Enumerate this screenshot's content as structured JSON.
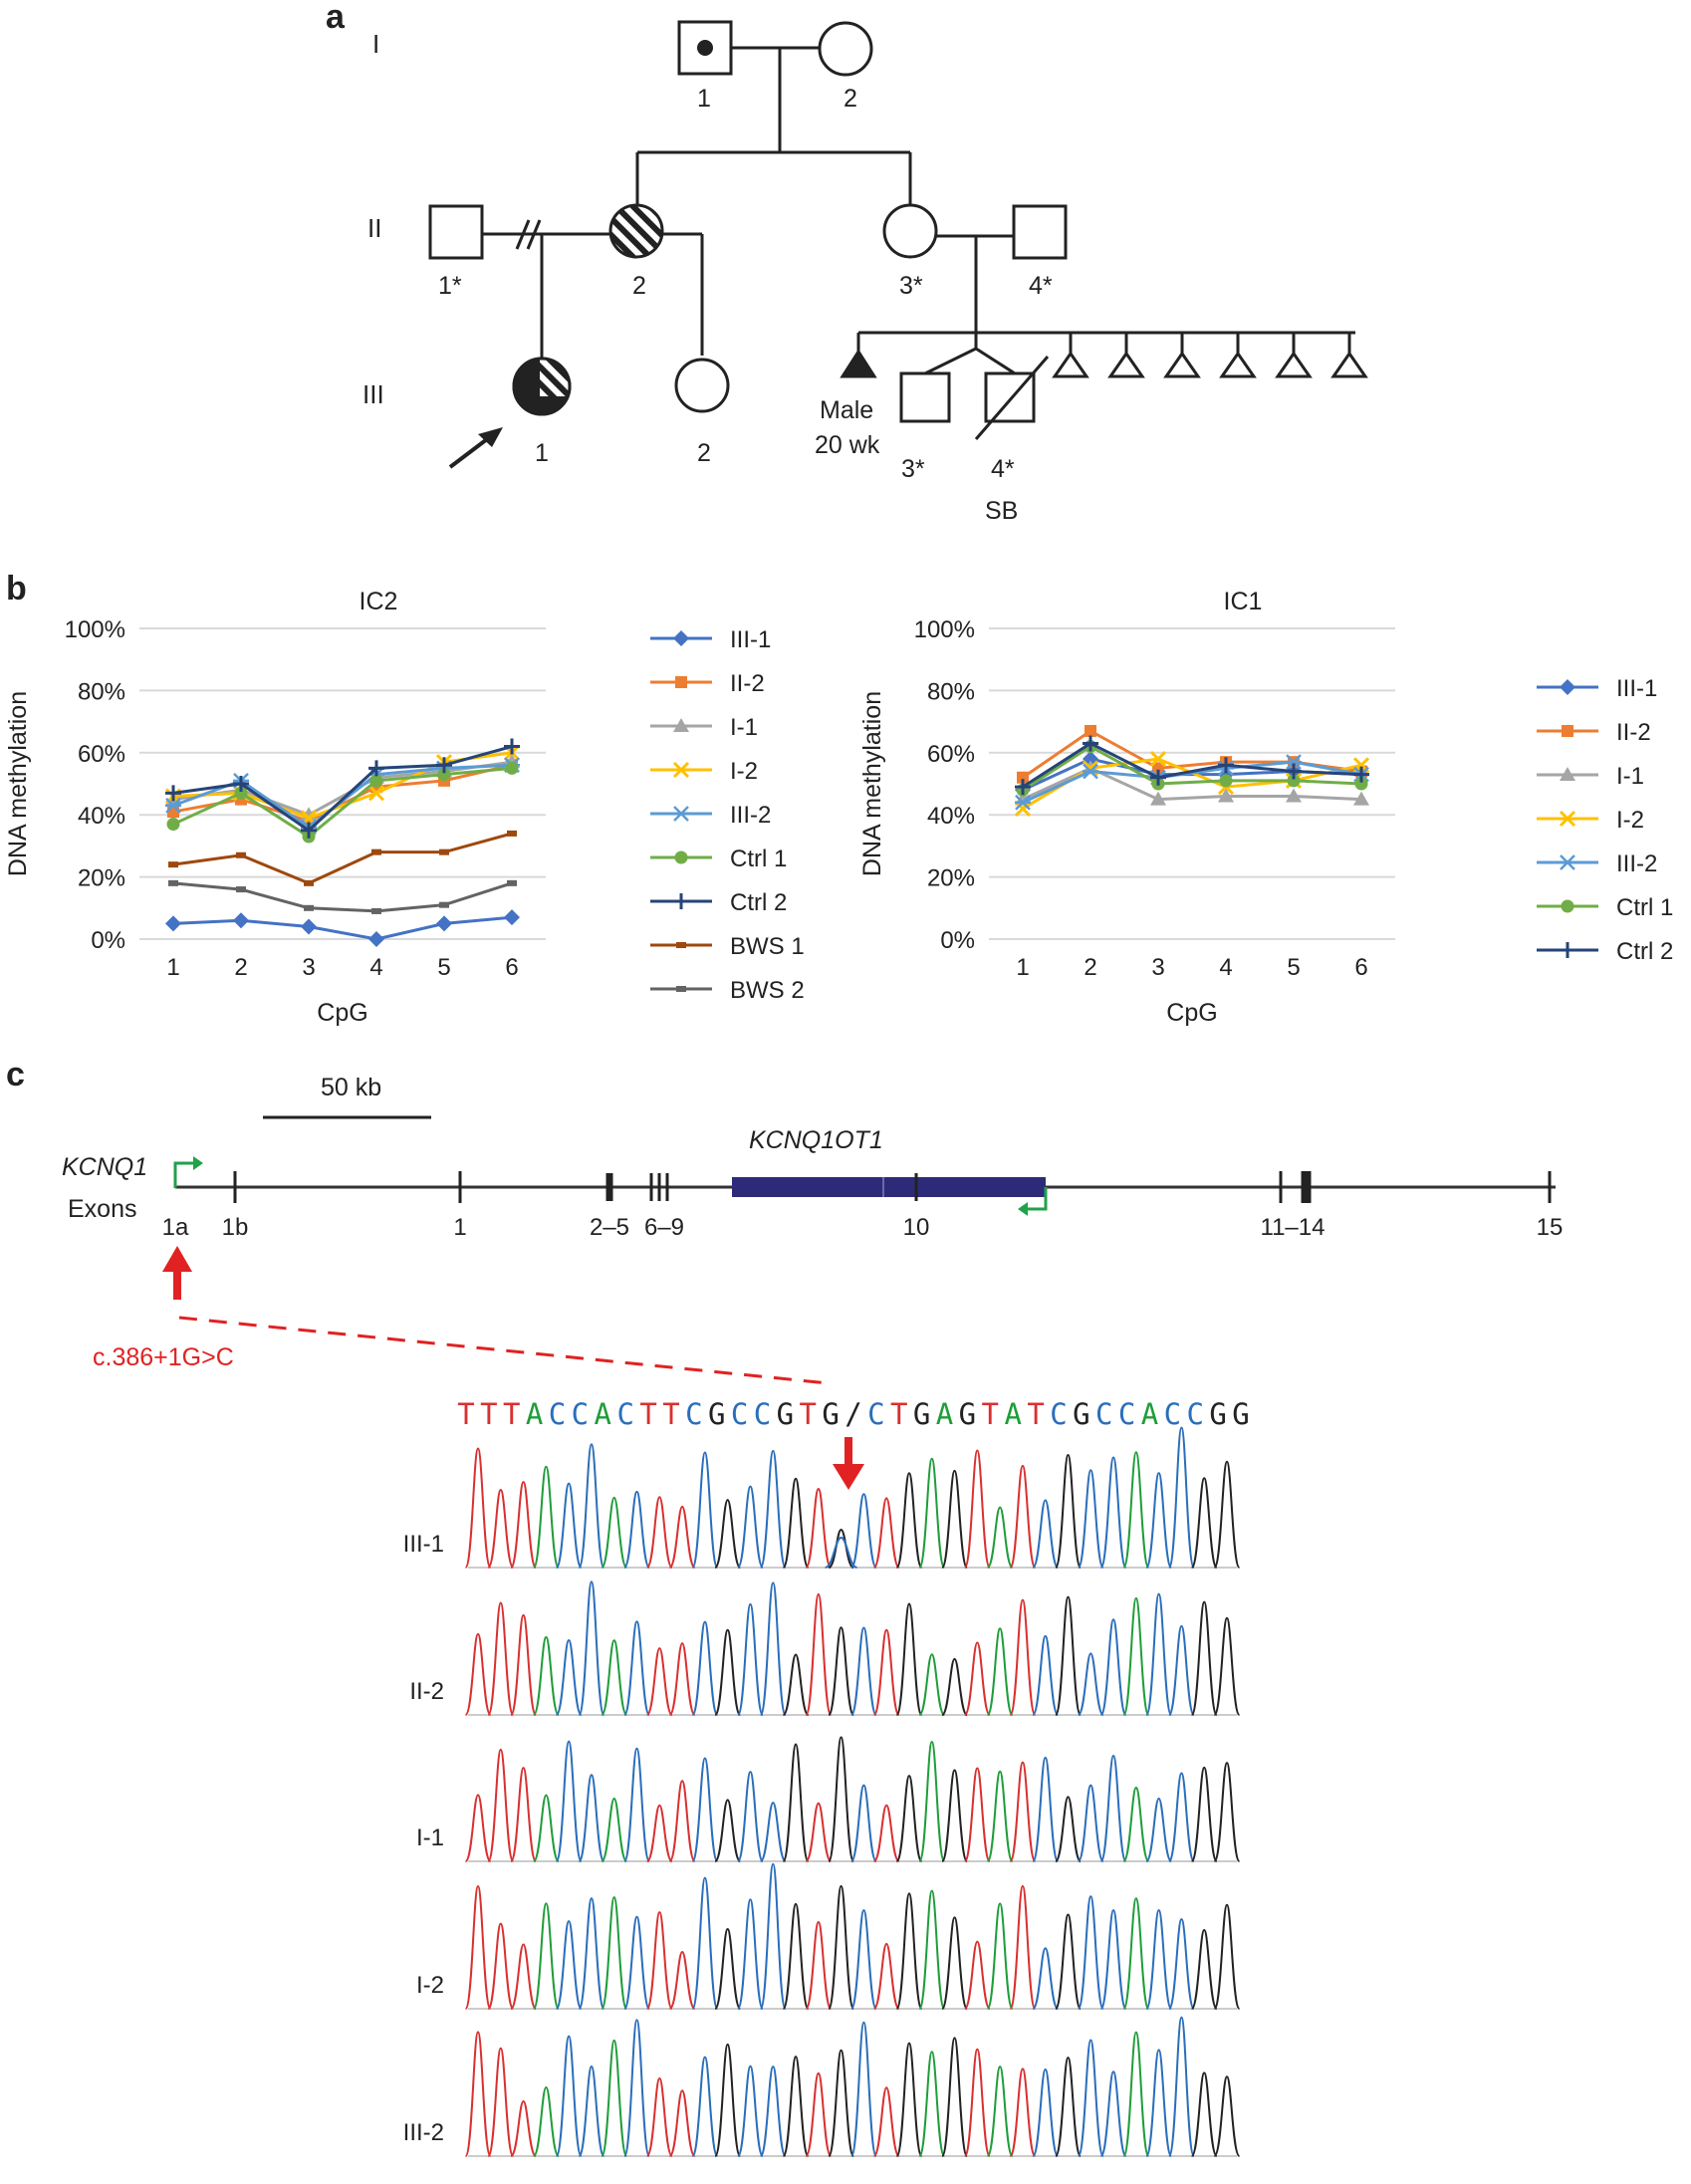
{
  "panels": {
    "a": "a",
    "b": "b",
    "c": "c"
  },
  "pedigree": {
    "generations": [
      "I",
      "II",
      "III"
    ],
    "ids": {
      "I1": "1",
      "I2": "2",
      "II1": "1*",
      "II2": "2",
      "II3": "3*",
      "II4": "4*",
      "III1": "1",
      "III2": "2",
      "male": "Male",
      "age": "20 wk",
      "III3": "3*",
      "III4": "4*",
      "sb": "SB"
    },
    "losses_count": 6
  },
  "colors": {
    "III-1": "#4472c4",
    "II-2": "#ed7d31",
    "I-1": "#a5a5a5",
    "I-2": "#ffc000",
    "III-2": "#5b9bd5",
    "Ctrl 1": "#70ad47",
    "Ctrl 2": "#264478",
    "BWS 1": "#9e480e",
    "BWS 2": "#636363",
    "gridline": "#d9d9d9",
    "base_A": "#1f9d3a",
    "base_C": "#2a6ebb",
    "base_G": "#222222",
    "base_T": "#d93030"
  },
  "chart_data": [
    {
      "type": "line",
      "title": "IC2",
      "xlabel": "CpG",
      "ylabel": "DNA methylation",
      "categories": [
        "1",
        "2",
        "3",
        "4",
        "5",
        "6"
      ],
      "yticks": [
        "0%",
        "20%",
        "40%",
        "60%",
        "80%",
        "100%"
      ],
      "ylim": [
        0,
        100
      ],
      "series": [
        {
          "name": "III-1",
          "marker": "diamond",
          "values": [
            5,
            6,
            4,
            0,
            5,
            7
          ]
        },
        {
          "name": "II-2",
          "marker": "square",
          "values": [
            41,
            45,
            38,
            49,
            51,
            56
          ]
        },
        {
          "name": "I-1",
          "marker": "triangle",
          "values": [
            45,
            48,
            40,
            52,
            54,
            57
          ]
        },
        {
          "name": "I-2",
          "marker": "x",
          "values": [
            46,
            47,
            39,
            47,
            57,
            60
          ]
        },
        {
          "name": "III-2",
          "marker": "star",
          "values": [
            43,
            51,
            36,
            53,
            55,
            56
          ]
        },
        {
          "name": "Ctrl 1",
          "marker": "circle",
          "values": [
            37,
            47,
            33,
            51,
            53,
            55
          ]
        },
        {
          "name": "Ctrl 2",
          "marker": "plus",
          "values": [
            47,
            50,
            35,
            55,
            56,
            62
          ]
        },
        {
          "name": "BWS 1",
          "marker": "dash",
          "values": [
            24,
            27,
            18,
            28,
            28,
            34
          ]
        },
        {
          "name": "BWS 2",
          "marker": "dash",
          "values": [
            18,
            16,
            10,
            9,
            11,
            18
          ]
        }
      ]
    },
    {
      "type": "line",
      "title": "IC1",
      "xlabel": "CpG",
      "ylabel": "DNA methylation",
      "categories": [
        "1",
        "2",
        "3",
        "4",
        "5",
        "6"
      ],
      "yticks": [
        "0%",
        "20%",
        "40%",
        "60%",
        "80%",
        "100%"
      ],
      "ylim": [
        0,
        100
      ],
      "series": [
        {
          "name": "III-1",
          "marker": "diamond",
          "values": [
            48,
            58,
            53,
            53,
            54,
            53
          ]
        },
        {
          "name": "II-2",
          "marker": "square",
          "values": [
            52,
            67,
            55,
            57,
            57,
            54
          ]
        },
        {
          "name": "I-1",
          "marker": "triangle",
          "values": [
            45,
            55,
            45,
            46,
            46,
            45
          ]
        },
        {
          "name": "I-2",
          "marker": "x",
          "values": [
            42,
            55,
            58,
            49,
            51,
            56
          ]
        },
        {
          "name": "III-2",
          "marker": "star",
          "values": [
            44,
            54,
            52,
            55,
            57,
            53
          ]
        },
        {
          "name": "Ctrl 1",
          "marker": "circle",
          "values": [
            48,
            62,
            50,
            51,
            51,
            50
          ]
        },
        {
          "name": "Ctrl 2",
          "marker": "plus",
          "values": [
            49,
            63,
            52,
            56,
            54,
            53
          ]
        }
      ]
    }
  ],
  "genemap": {
    "scale": "50 kb",
    "gene": "KCNQ1",
    "exonsLabel": "Exons",
    "lncGene": "KCNQ1OT1",
    "exons": [
      "1a",
      "1b",
      "1",
      "2–5",
      "6–9",
      "10",
      "11–14",
      "15"
    ],
    "mutation": "c.386+1G>C"
  },
  "sequence": {
    "bases": [
      "T",
      "T",
      "T",
      "A",
      "C",
      "C",
      "A",
      "C",
      "T",
      "T",
      "C",
      "G",
      "C",
      "C",
      "G",
      "T",
      "G",
      "/",
      "C",
      "T",
      "G",
      "A",
      "G",
      "T",
      "A",
      "T",
      "C",
      "G",
      "C",
      "C",
      "A",
      "C",
      "C",
      "G",
      "G"
    ],
    "samples": [
      "III-1",
      "II-2",
      "I-1",
      "I-2",
      "III-2"
    ]
  }
}
